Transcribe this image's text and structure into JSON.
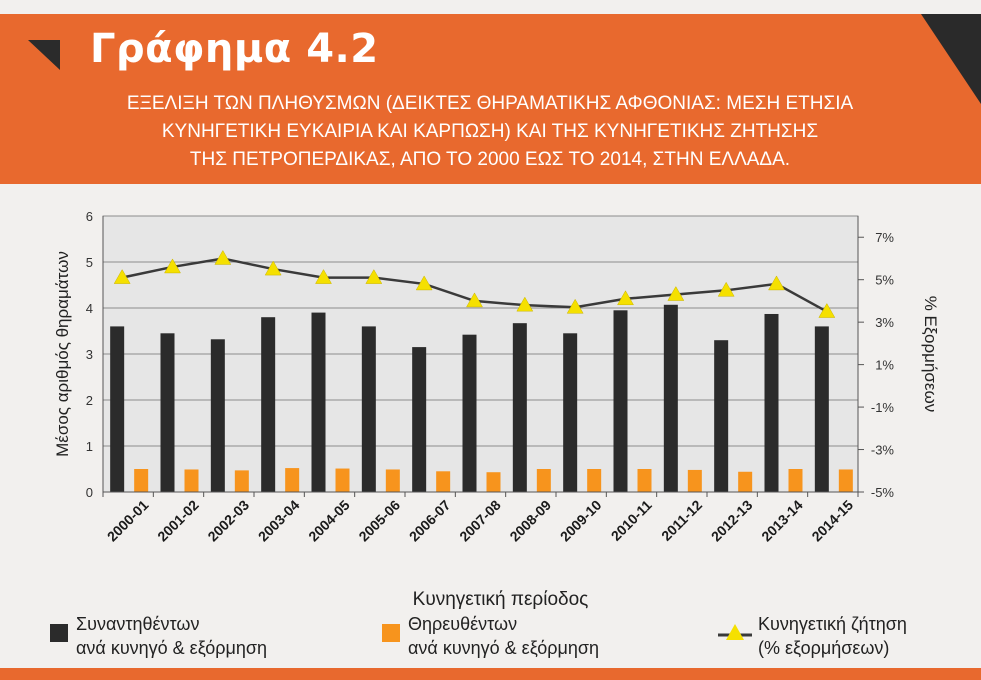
{
  "header": {
    "figure_title": "Γράφημα 4.2",
    "subtitle_lines": [
      "ΕΞΕΛΙΞΗ ΤΩΝ ΠΛΗΘΥΣΜΩΝ (ΔΕΙΚΤΕΣ ΘΗΡΑΜΑΤΙΚΗΣ ΑΦΘΟΝΙΑΣ: ΜΕΣΗ ΕΤΗΣΙΑ",
      "ΚΥΝΗΓΕΤΙΚΗ ΕΥΚΑΙΡΙΑ ΚΑΙ ΚΑΡΠΩΣΗ) ΚΑΙ ΤΗΣ ΚΥΝΗΓΕΤΙΚΗΣ ΖΗΤΗΣΗΣ",
      "ΤΗΣ ΠΕΤΡΟΠΕΡΔΙΚΑΣ, ΑΠΟ ΤΟ 2000 ΕΩΣ ΤΟ 2014, ΣΤΗΝ ΕΛΛΑΔΑ."
    ]
  },
  "colors": {
    "banner": "#e8692e",
    "series_encountered": "#2b2b2b",
    "series_harvested": "#f7941d",
    "series_demand_line": "#3a3a3a",
    "series_demand_marker": "#f5e000",
    "plot_bg": "#e6e6e6"
  },
  "legend": {
    "encountered_line1": "Συναντηθέντων",
    "encountered_line2": "ανά κυνηγό & εξόρμηση",
    "harvested_line1": "Θηρευθέντων",
    "harvested_line2": "ανά κυνηγό & εξόρμηση",
    "demand_line1": "Κυνηγετική ζήτηση",
    "demand_line2": "(% εξορμήσεων)"
  },
  "chart_data": {
    "type": "bar",
    "categories": [
      "2000-01",
      "2001-02",
      "2002-03",
      "2003-04",
      "2004-05",
      "2005-06",
      "2006-07",
      "2007-08",
      "2008-09",
      "2009-10",
      "2010-11",
      "2011-12",
      "2012-13",
      "2013-14",
      "2014-15"
    ],
    "xlabel": "Κυνηγετική περίοδος",
    "ylabel": "Μέσος αριθμός θηραμάτων",
    "y2label": "% Εξορμήσεων",
    "ylim": [
      0,
      6
    ],
    "yticks": [
      "0",
      "1",
      "2",
      "3",
      "4",
      "5",
      "6"
    ],
    "y2lim": [
      -5,
      8
    ],
    "y2ticks": [
      "-5%",
      "-3%",
      "-1%",
      "1%",
      "3%",
      "5%",
      "7%"
    ],
    "grid": true,
    "legend_position": "bottom",
    "series": [
      {
        "name": "Συναντηθέντων ανά κυνηγό & εξόρμηση",
        "kind": "bar",
        "values": [
          3.6,
          3.45,
          3.32,
          3.8,
          3.9,
          3.6,
          3.15,
          3.42,
          3.67,
          3.45,
          3.95,
          4.07,
          3.3,
          3.87,
          3.6
        ]
      },
      {
        "name": "Θηρευθέντων ανά κυνηγό & εξόρμηση",
        "kind": "bar",
        "values": [
          0.5,
          0.49,
          0.47,
          0.52,
          0.51,
          0.49,
          0.45,
          0.43,
          0.5,
          0.5,
          0.5,
          0.48,
          0.44,
          0.5,
          0.49
        ]
      },
      {
        "name": "Κυνηγετική ζήτηση (% εξορμήσεων)",
        "kind": "line",
        "axis": "right",
        "values": [
          5.1,
          5.6,
          6.0,
          5.5,
          5.1,
          5.1,
          4.8,
          4.0,
          3.8,
          3.7,
          4.1,
          4.3,
          4.5,
          4.8,
          3.5
        ]
      }
    ]
  }
}
